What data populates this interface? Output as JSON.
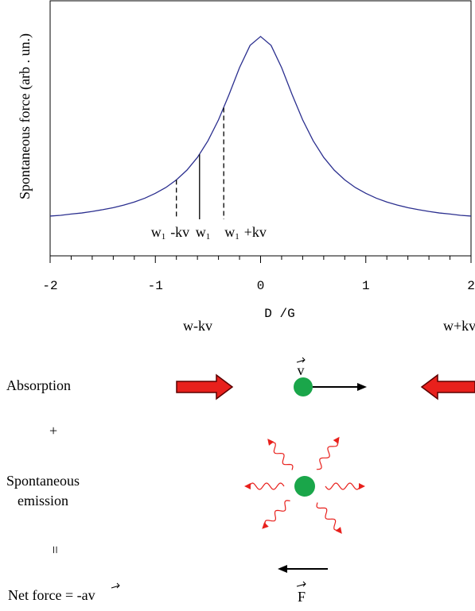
{
  "chart_data": {
    "type": "line",
    "ylabel": "Spontaneous force (arb . un.)",
    "xlabel": "D /G",
    "x": [
      -2.0,
      -1.9,
      -1.8,
      -1.7,
      -1.6,
      -1.5,
      -1.4,
      -1.3,
      -1.2,
      -1.1,
      -1.0,
      -0.9,
      -0.8,
      -0.7,
      -0.6,
      -0.5,
      -0.4,
      -0.3,
      -0.2,
      -0.1,
      0.0,
      0.1,
      0.2,
      0.3,
      0.4,
      0.5,
      0.6,
      0.7,
      0.8,
      0.9,
      1.0,
      1.1,
      1.2,
      1.3,
      1.4,
      1.5,
      1.6,
      1.7,
      1.8,
      1.9,
      2.0
    ],
    "series": [
      {
        "color": "#2b2f8f",
        "values": [
          0.156,
          0.159,
          0.164,
          0.168,
          0.174,
          0.181,
          0.189,
          0.199,
          0.211,
          0.226,
          0.245,
          0.268,
          0.298,
          0.336,
          0.386,
          0.451,
          0.533,
          0.632,
          0.738,
          0.825,
          0.86,
          0.825,
          0.738,
          0.632,
          0.533,
          0.451,
          0.386,
          0.336,
          0.298,
          0.268,
          0.245,
          0.226,
          0.211,
          0.199,
          0.189,
          0.181,
          0.174,
          0.168,
          0.164,
          0.159,
          0.156
        ]
      }
    ],
    "xlim": [
      -2,
      2
    ],
    "xticks": [
      -2,
      -1,
      0,
      1,
      2
    ],
    "ylim": [
      0,
      1
    ],
    "markers": [
      {
        "x": -0.8,
        "y": 0.298,
        "dashed": true,
        "label": "w",
        "sub": "1",
        "suffix": "-kv"
      },
      {
        "x": -0.58,
        "y": 0.398,
        "dashed": false,
        "label": "w",
        "sub": "1"
      },
      {
        "x": -0.35,
        "y": 0.581,
        "dashed": true,
        "label": "w",
        "sub": "1",
        "suffix": "+kv"
      }
    ]
  },
  "diagram": {
    "left_beam": "w-kv",
    "right_beam": "w+kv",
    "absorption": "Absorption",
    "plus": "+",
    "spontaneous": "Spontaneous",
    "emission": "emission",
    "equals": "=",
    "net_force": "Net force = -a",
    "net_force_v": "v",
    "velocity": "v",
    "force": "F"
  }
}
